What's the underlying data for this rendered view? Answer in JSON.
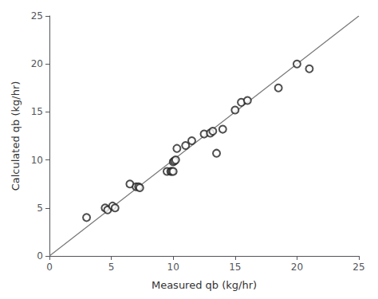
{
  "chart_data": {
    "type": "scatter",
    "xlabel": "Measured qb (kg/hr)",
    "ylabel": "Calculated qb (kg/hr)",
    "xlim": [
      0,
      25
    ],
    "ylim": [
      0,
      25
    ],
    "xticks": [
      0,
      5,
      10,
      15,
      20,
      25
    ],
    "yticks": [
      0,
      5,
      10,
      15,
      20,
      25
    ],
    "grid": false,
    "series": [
      {
        "type": "line",
        "color": "#777777",
        "line_style": "solid",
        "x": [
          0,
          25
        ],
        "values": [
          0,
          25
        ]
      },
      {
        "type": "scatter",
        "color": "#222222",
        "marker": "circle",
        "x": [
          3.0,
          4.5,
          4.7,
          5.1,
          5.3,
          6.5,
          7.0,
          7.2,
          7.3,
          9.5,
          9.8,
          9.9,
          10.0,
          10.0,
          10.1,
          10.2,
          10.3,
          11.0,
          11.5,
          12.5,
          13.0,
          13.2,
          13.5,
          14.0,
          15.0,
          15.5,
          16.0,
          18.5,
          20.0,
          21.0
        ],
        "values": [
          4.0,
          5.0,
          4.8,
          5.2,
          5.0,
          7.5,
          7.2,
          7.2,
          7.1,
          8.8,
          8.8,
          8.8,
          8.8,
          9.8,
          9.9,
          10.0,
          11.2,
          11.5,
          12.0,
          12.7,
          12.8,
          13.0,
          10.7,
          13.2,
          15.2,
          16.0,
          16.2,
          17.5,
          20.0,
          19.5
        ]
      }
    ]
  }
}
